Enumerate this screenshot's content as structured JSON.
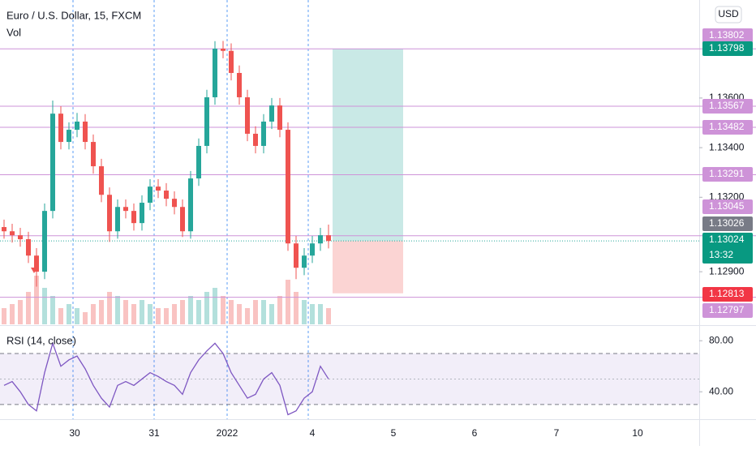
{
  "chart_data": {
    "type": "candlestick",
    "title": "Euro / U.S. Dollar, 15, FXCM",
    "volume_label": "Vol",
    "currency": "USD",
    "ylim": [
      1.12688,
      1.13995
    ],
    "yticks": [
      {
        "value": 1.136,
        "label": "1.13600"
      },
      {
        "value": 1.134,
        "label": "1.13400"
      },
      {
        "value": 1.132,
        "label": "1.13200"
      },
      {
        "value": 1.129,
        "label": "1.12900"
      }
    ],
    "time_labels": [
      "30",
      "31",
      "2022",
      "4",
      "5",
      "6",
      "7",
      "10"
    ],
    "open": [
      1.1308,
      1.13063,
      1.13047,
      1.13031,
      1.12965,
      1.129,
      1.13145,
      1.13537,
      1.13423,
      1.13472,
      1.13505,
      1.13423,
      1.13325,
      1.1321,
      1.13063,
      1.13161,
      1.13145,
      1.13096,
      1.13178,
      1.13243,
      1.13227,
      1.13194,
      1.13161,
      1.13063,
      1.13276,
      1.13407,
      1.13603,
      1.13799,
      1.1379,
      1.13701,
      1.13603,
      1.13456,
      1.13407,
      1.13505,
      1.1357,
      1.13472,
      1.13014,
      1.12916,
      1.12965,
      1.13014,
      1.13047
    ],
    "high": [
      1.1311,
      1.13093,
      1.13077,
      1.13061,
      1.12995,
      1.13175,
      1.1359,
      1.13567,
      1.13502,
      1.1354,
      1.13535,
      1.13453,
      1.13355,
      1.1324,
      1.13191,
      1.13191,
      1.13175,
      1.13208,
      1.13273,
      1.13273,
      1.13257,
      1.13224,
      1.13191,
      1.13306,
      1.13437,
      1.13633,
      1.13829,
      1.1383,
      1.1382,
      1.13731,
      1.13633,
      1.13486,
      1.13535,
      1.136,
      1.136,
      1.13502,
      1.13044,
      1.12995,
      1.13044,
      1.13077,
      1.1309
    ],
    "low": [
      1.13033,
      1.13017,
      1.13001,
      1.12935,
      1.1284,
      1.1287,
      1.13115,
      1.13393,
      1.13393,
      1.13442,
      1.13393,
      1.13295,
      1.1318,
      1.1302,
      1.13033,
      1.13115,
      1.13066,
      1.13066,
      1.13148,
      1.13197,
      1.13164,
      1.13131,
      1.1304,
      1.13033,
      1.13246,
      1.13377,
      1.13573,
      1.1376,
      1.13671,
      1.13573,
      1.13426,
      1.13377,
      1.13377,
      1.13475,
      1.13442,
      1.12984,
      1.1287,
      1.12886,
      1.12935,
      1.12984,
      1.12994
    ],
    "close": [
      1.13063,
      1.13047,
      1.13031,
      1.12965,
      1.129,
      1.13145,
      1.13537,
      1.13423,
      1.13472,
      1.13505,
      1.13423,
      1.13325,
      1.1321,
      1.13063,
      1.13161,
      1.13145,
      1.13096,
      1.13178,
      1.13243,
      1.13227,
      1.13194,
      1.13161,
      1.13063,
      1.13276,
      1.13407,
      1.13603,
      1.13799,
      1.1379,
      1.13701,
      1.13603,
      1.13456,
      1.13407,
      1.13505,
      1.1357,
      1.13472,
      1.13014,
      1.12916,
      1.12965,
      1.13014,
      1.13047,
      1.13024
    ],
    "up_color": "#26a69a",
    "down_color": "#ef5350",
    "volume": [
      20,
      25,
      30,
      40,
      60,
      45,
      35,
      20,
      25,
      20,
      15,
      25,
      30,
      40,
      35,
      30,
      25,
      30,
      25,
      20,
      20,
      25,
      30,
      35,
      30,
      40,
      45,
      35,
      30,
      25,
      20,
      30,
      30,
      25,
      35,
      55,
      40,
      30,
      25,
      25,
      20
    ],
    "vlim": [
      0,
      100
    ],
    "levels": [
      1.13798,
      1.13567,
      1.13482,
      1.13291,
      1.13045,
      1.12797
    ],
    "level_color": "#ce93d8",
    "position": {
      "entry": 1.13024,
      "target": 1.13798,
      "stop": 1.12813
    },
    "price_badges": [
      {
        "value": 1.13802,
        "color": "#ce93d8"
      },
      {
        "value": 1.13798,
        "color": "#089981"
      },
      {
        "value": 1.13567,
        "color": "#ce93d8"
      },
      {
        "value": 1.13482,
        "color": "#ce93d8"
      },
      {
        "value": 1.13291,
        "color": "#ce93d8"
      },
      {
        "value": 1.13045,
        "color": "#ce93d8"
      },
      {
        "value": 1.13026,
        "color": "#787b86"
      },
      {
        "value": 1.13024,
        "color": "#089981"
      },
      {
        "value": 1.12813,
        "color": "#f23645"
      },
      {
        "value": 1.12797,
        "color": "#ce93d8"
      }
    ],
    "countdown": "13:32",
    "rsi": {
      "title": "RSI (14, close)",
      "color": "#7e57c2",
      "ylim": [
        18.5,
        91.6
      ],
      "yticks": [
        {
          "value": 80,
          "label": "80.00"
        },
        {
          "value": 40,
          "label": "40.00"
        }
      ],
      "band": [
        70,
        30
      ],
      "mid": 50,
      "values": [
        45,
        48,
        40,
        30,
        25,
        55,
        78,
        60,
        65,
        68,
        58,
        45,
        35,
        28,
        45,
        48,
        45,
        50,
        55,
        52,
        48,
        45,
        38,
        55,
        65,
        72,
        78,
        70,
        55,
        45,
        35,
        38,
        50,
        55,
        45,
        22,
        25,
        35,
        40,
        60,
        50
      ]
    }
  }
}
